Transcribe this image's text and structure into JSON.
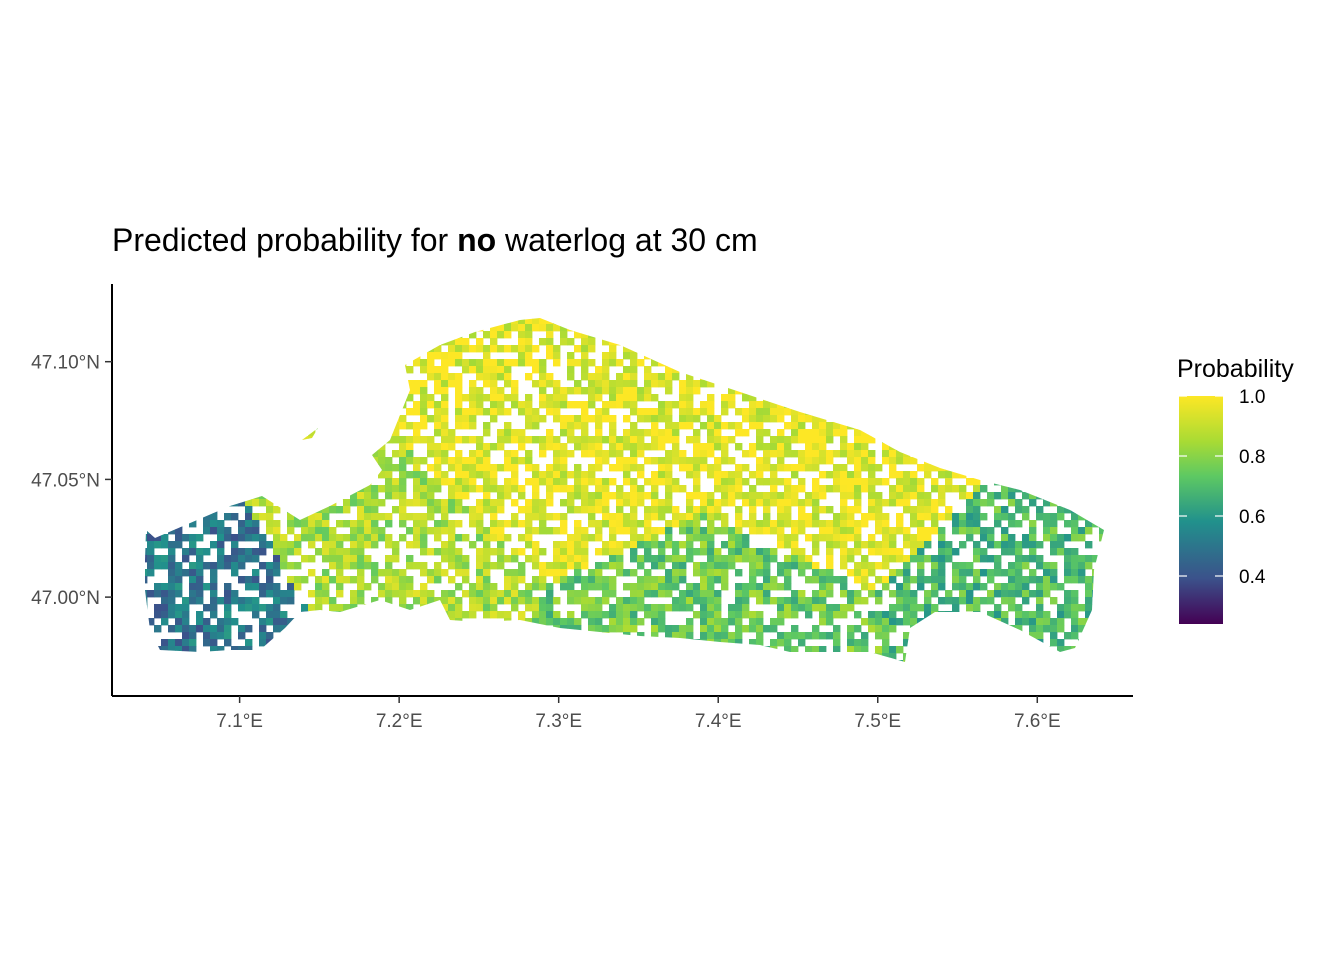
{
  "title": {
    "prefix": "Predicted probability for ",
    "bold": "no",
    "suffix": " waterlog at 30 cm"
  },
  "legend": {
    "title": "Probability",
    "breaks": [
      {
        "value": 1.0,
        "label": "1.0"
      },
      {
        "value": 0.8,
        "label": "0.8"
      },
      {
        "value": 0.6,
        "label": "0.6"
      },
      {
        "value": 0.4,
        "label": "0.4"
      }
    ],
    "range": [
      0.24,
      1.0
    ],
    "palette": "viridis",
    "colors": [
      "#440154",
      "#3b528b",
      "#21918c",
      "#5ec962",
      "#a8db34",
      "#fde725"
    ]
  },
  "chart_data": {
    "type": "heatmap",
    "title": "Predicted probability for no waterlog at 30 cm",
    "x_axis": {
      "ticks": [
        {
          "value": 7.1,
          "label": "7.1°E"
        },
        {
          "value": 7.2,
          "label": "7.2°E"
        },
        {
          "value": 7.3,
          "label": "7.3°E"
        },
        {
          "value": 7.4,
          "label": "7.4°E"
        },
        {
          "value": 7.5,
          "label": "7.5°E"
        },
        {
          "value": 7.6,
          "label": "7.6°E"
        }
      ],
      "range": [
        7.02,
        7.66
      ]
    },
    "y_axis": {
      "ticks": [
        {
          "value": 47.1,
          "label": "47.10°N"
        },
        {
          "value": 47.05,
          "label": "47.05°N"
        },
        {
          "value": 47.0,
          "label": "47.00°N"
        }
      ],
      "range": [
        46.958,
        47.133
      ]
    },
    "grid": false,
    "legend_position": "right",
    "regions": [
      {
        "zone": "southwest",
        "lon": [
          7.045,
          7.13
        ],
        "lat": [
          46.977,
          47.02
        ],
        "probability": 0.5
      },
      {
        "zone": "west-central",
        "lon": [
          7.13,
          7.22
        ],
        "lat": [
          46.99,
          47.04
        ],
        "probability": 0.85
      },
      {
        "zone": "central",
        "lon": [
          7.22,
          7.4
        ],
        "lat": [
          47.0,
          47.12
        ],
        "probability": 0.95
      },
      {
        "zone": "east-central",
        "lon": [
          7.4,
          7.55
        ],
        "lat": [
          47.0,
          47.1
        ],
        "probability": 0.95
      },
      {
        "zone": "south",
        "lon": [
          7.3,
          7.5
        ],
        "lat": [
          46.975,
          47.01
        ],
        "probability": 0.75
      },
      {
        "zone": "east",
        "lon": [
          7.55,
          7.64
        ],
        "lat": [
          46.98,
          47.04
        ],
        "probability": 0.7
      }
    ]
  }
}
